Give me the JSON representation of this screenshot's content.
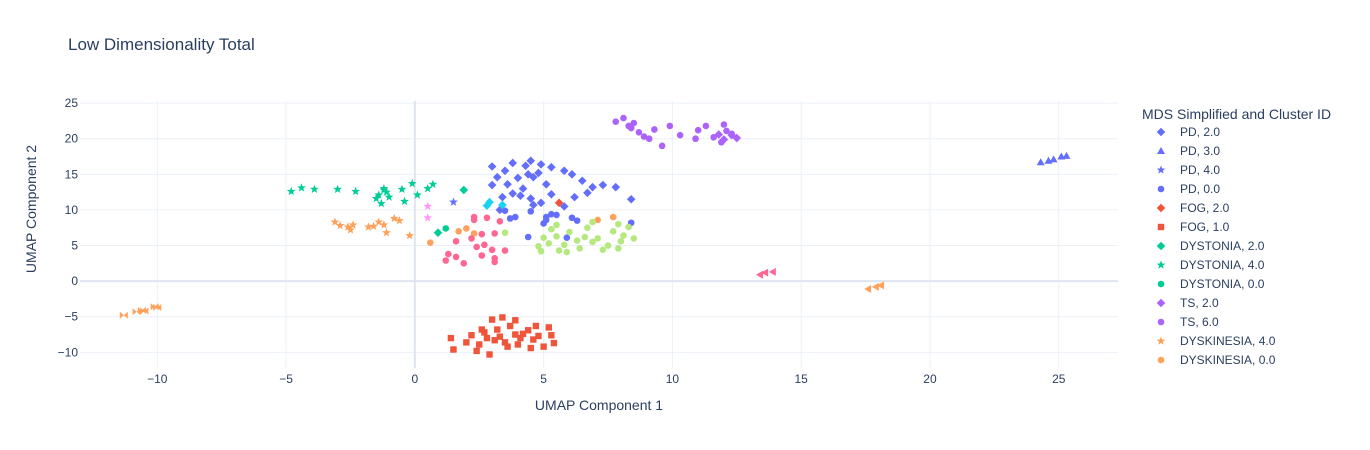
{
  "chart_data": {
    "type": "scatter",
    "title": "Low Dimensionality Total",
    "xlabel": "UMAP Component 1",
    "ylabel": "UMAP Component 2",
    "xlim": [
      -13.0,
      27.3
    ],
    "ylim": [
      -12.2,
      25.3
    ],
    "xticks": [
      -10,
      -5,
      0,
      5,
      10,
      15,
      20,
      25
    ],
    "yticks": [
      -10,
      -5,
      0,
      5,
      10,
      15,
      20,
      25
    ],
    "grid": true,
    "legend_title": "MDS Simplified and Cluster ID",
    "legend_position": "right",
    "series": [
      {
        "name": "PD, 2.0",
        "color": "#636efa",
        "symbol": "diamond",
        "points": [
          [
            3.0,
            16.1
          ],
          [
            3.5,
            15.5
          ],
          [
            3.8,
            16.6
          ],
          [
            4.3,
            16.2
          ],
          [
            4.5,
            16.9
          ],
          [
            4.9,
            16.4
          ],
          [
            5.3,
            16.0
          ],
          [
            5.8,
            15.5
          ],
          [
            6.1,
            15.0
          ],
          [
            6.5,
            14.1
          ],
          [
            6.9,
            13.2
          ],
          [
            7.3,
            13.5
          ],
          [
            7.8,
            13.2
          ],
          [
            8.4,
            11.5
          ],
          [
            3.2,
            14.6
          ],
          [
            3.6,
            13.6
          ],
          [
            4.0,
            14.5
          ],
          [
            4.4,
            15.0
          ],
          [
            4.6,
            14.6
          ],
          [
            4.8,
            15.2
          ],
          [
            4.2,
            13.0
          ],
          [
            3.8,
            12.3
          ],
          [
            3.4,
            11.8
          ],
          [
            3.3,
            10.0
          ],
          [
            4.5,
            11.6
          ],
          [
            4.9,
            11.0
          ],
          [
            5.3,
            12.2
          ],
          [
            5.8,
            10.5
          ],
          [
            6.2,
            11.8
          ],
          [
            6.7,
            12.4
          ],
          [
            4.6,
            10.7
          ],
          [
            4.1,
            12.0
          ],
          [
            3.0,
            13.5
          ],
          [
            5.1,
            13.6
          ]
        ]
      },
      {
        "name": "PD, 3.0",
        "color": "#636efa",
        "symbol": "triangle-up",
        "points": [
          [
            24.3,
            16.7
          ],
          [
            24.6,
            16.9
          ],
          [
            24.8,
            17.1
          ],
          [
            25.1,
            17.5
          ],
          [
            25.3,
            17.6
          ]
        ]
      },
      {
        "name": "PD, 4.0",
        "color": "#636efa",
        "symbol": "star",
        "points": [
          [
            1.5,
            11.1
          ]
        ]
      },
      {
        "name": "PD, 0.0",
        "color": "#636efa",
        "symbol": "circle",
        "points": [
          [
            3.5,
            9.9
          ],
          [
            3.9,
            9.0
          ],
          [
            4.5,
            9.8
          ],
          [
            5.1,
            9.0
          ],
          [
            5.3,
            9.4
          ],
          [
            5.5,
            9.3
          ],
          [
            6.1,
            8.9
          ],
          [
            6.3,
            8.5
          ],
          [
            8.4,
            8.2
          ],
          [
            4.4,
            6.2
          ],
          [
            5.9,
            6.1
          ],
          [
            5.0,
            8.1
          ],
          [
            5.1,
            8.6
          ],
          [
            3.7,
            8.8
          ]
        ]
      },
      {
        "name": "FOG, 2.0",
        "color": "#EF553B",
        "symbol": "diamond",
        "points": [
          [
            5.6,
            11.0
          ]
        ]
      },
      {
        "name": "FOG, 1.0",
        "color": "#EF553B",
        "symbol": "square",
        "points": [
          [
            1.4,
            -8.0
          ],
          [
            1.5,
            -9.6
          ],
          [
            2.0,
            -8.6
          ],
          [
            2.2,
            -7.6
          ],
          [
            2.5,
            -8.9
          ],
          [
            2.6,
            -6.8
          ],
          [
            2.8,
            -8.0
          ],
          [
            3.0,
            -5.4
          ],
          [
            3.2,
            -6.8
          ],
          [
            3.3,
            -7.8
          ],
          [
            3.5,
            -8.6
          ],
          [
            3.7,
            -6.3
          ],
          [
            3.9,
            -7.5
          ],
          [
            4.0,
            -8.9
          ],
          [
            4.2,
            -7.4
          ],
          [
            4.4,
            -6.9
          ],
          [
            4.6,
            -8.2
          ],
          [
            4.8,
            -7.7
          ],
          [
            5.0,
            -9.2
          ],
          [
            5.2,
            -6.5
          ],
          [
            5.4,
            -8.7
          ],
          [
            2.4,
            -9.8
          ],
          [
            2.9,
            -10.3
          ],
          [
            3.4,
            -5.1
          ],
          [
            3.9,
            -5.5
          ],
          [
            4.5,
            -9.4
          ],
          [
            5.3,
            -7.6
          ],
          [
            2.7,
            -7.2
          ],
          [
            3.1,
            -8.3
          ],
          [
            3.6,
            -9.2
          ],
          [
            4.1,
            -8.0
          ],
          [
            4.7,
            -6.3
          ]
        ]
      },
      {
        "name": "DYSTONIA, 2.0",
        "color": "#00cc96",
        "symbol": "diamond",
        "points": [
          [
            1.9,
            12.8
          ],
          [
            0.9,
            6.8
          ]
        ]
      },
      {
        "name": "DYSTONIA, 4.0",
        "color": "#00cc96",
        "symbol": "star",
        "points": [
          [
            -4.8,
            12.6
          ],
          [
            -4.4,
            13.1
          ],
          [
            -3.9,
            12.9
          ],
          [
            -3.0,
            12.9
          ],
          [
            -2.3,
            12.6
          ],
          [
            -1.4,
            12.1
          ],
          [
            -1.2,
            13.0
          ],
          [
            -1.1,
            12.5
          ],
          [
            -1.0,
            11.8
          ],
          [
            -0.5,
            12.9
          ],
          [
            -0.1,
            13.7
          ],
          [
            0.5,
            13.0
          ],
          [
            0.7,
            13.6
          ],
          [
            -0.4,
            11.2
          ],
          [
            -1.3,
            10.9
          ],
          [
            -1.5,
            11.6
          ],
          [
            0.1,
            12.1
          ],
          [
            -1.2,
            12.8
          ]
        ]
      },
      {
        "name": "DYSTONIA, 0.0",
        "color": "#00cc96",
        "symbol": "circle",
        "points": [
          [
            1.2,
            7.4
          ]
        ]
      },
      {
        "name": "TS, 2.0",
        "color": "#ab63fa",
        "symbol": "diamond",
        "points": [
          [
            12.3,
            20.5
          ],
          [
            12.0,
            19.9
          ],
          [
            12.5,
            20.1
          ],
          [
            11.8,
            20.6
          ]
        ]
      },
      {
        "name": "TS, 6.0",
        "color": "#ab63fa",
        "symbol": "circle",
        "points": [
          [
            7.8,
            22.4
          ],
          [
            8.1,
            22.9
          ],
          [
            8.3,
            21.8
          ],
          [
            8.5,
            22.2
          ],
          [
            8.7,
            20.9
          ],
          [
            8.9,
            20.3
          ],
          [
            9.3,
            21.3
          ],
          [
            9.6,
            19.0
          ],
          [
            9.9,
            21.8
          ],
          [
            10.3,
            20.5
          ],
          [
            11.0,
            21.2
          ],
          [
            11.3,
            21.8
          ],
          [
            11.6,
            20.2
          ],
          [
            12.0,
            22.0
          ],
          [
            12.1,
            21.1
          ],
          [
            12.3,
            20.7
          ],
          [
            11.9,
            19.5
          ],
          [
            9.1,
            20.0
          ],
          [
            10.9,
            20.0
          ],
          [
            8.4,
            21.5
          ]
        ]
      },
      {
        "name": "DYSKINESIA, 4.0",
        "color": "#FFA15A",
        "symbol": "star",
        "points": [
          [
            -3.1,
            8.3
          ],
          [
            -2.9,
            7.8
          ],
          [
            -2.6,
            7.6
          ],
          [
            -2.4,
            7.9
          ],
          [
            -1.8,
            7.6
          ],
          [
            -1.4,
            8.3
          ],
          [
            -1.2,
            7.9
          ],
          [
            -1.1,
            6.8
          ],
          [
            -0.8,
            8.8
          ],
          [
            -0.6,
            8.5
          ],
          [
            -0.2,
            6.4
          ],
          [
            -2.5,
            7.2
          ],
          [
            -1.6,
            7.7
          ]
        ]
      },
      {
        "name": "DYSKINESIA, 0.0",
        "color": "#FFA15A",
        "symbol": "circle",
        "points": [
          [
            0.6,
            5.4
          ],
          [
            2.0,
            7.4
          ],
          [
            1.7,
            7.0
          ],
          [
            7.1,
            8.6
          ],
          [
            7.7,
            9.0
          ],
          [
            2.3,
            6.7
          ]
        ]
      },
      {
        "name": "",
        "color": "#19d3f3",
        "symbol": "diamond",
        "points": [
          [
            2.9,
            11.1
          ],
          [
            3.4,
            10.7
          ],
          [
            2.8,
            10.6
          ]
        ]
      },
      {
        "name": "",
        "color": "#FF6692",
        "symbol": "circle",
        "points": [
          [
            1.6,
            5.6
          ],
          [
            1.3,
            3.8
          ],
          [
            1.6,
            3.4
          ],
          [
            1.9,
            2.5
          ],
          [
            2.2,
            6.0
          ],
          [
            2.3,
            8.6
          ],
          [
            2.3,
            9.0
          ],
          [
            2.6,
            6.6
          ],
          [
            2.7,
            5.1
          ],
          [
            2.8,
            8.9
          ],
          [
            3.0,
            4.4
          ],
          [
            3.1,
            6.7
          ],
          [
            3.1,
            3.2
          ],
          [
            3.1,
            2.7
          ],
          [
            3.3,
            8.4
          ],
          [
            3.5,
            4.3
          ],
          [
            2.6,
            3.6
          ],
          [
            2.4,
            4.8
          ],
          [
            1.2,
            2.9
          ]
        ]
      },
      {
        "name": "",
        "color": "#FF6692",
        "symbol": "triangle-left",
        "points": [
          [
            13.4,
            0.9
          ],
          [
            13.6,
            1.2
          ],
          [
            13.9,
            1.3
          ]
        ]
      },
      {
        "name": "",
        "color": "#B6E880",
        "symbol": "circle",
        "points": [
          [
            4.8,
            4.9
          ],
          [
            5.0,
            6.1
          ],
          [
            5.2,
            5.3
          ],
          [
            5.3,
            7.3
          ],
          [
            5.5,
            6.3
          ],
          [
            5.8,
            5.1
          ],
          [
            5.9,
            4.1
          ],
          [
            6.0,
            6.9
          ],
          [
            6.4,
            4.6
          ],
          [
            6.6,
            6.2
          ],
          [
            6.7,
            7.5
          ],
          [
            6.9,
            5.5
          ],
          [
            7.1,
            6.0
          ],
          [
            7.3,
            4.4
          ],
          [
            7.5,
            5.0
          ],
          [
            7.7,
            7.0
          ],
          [
            7.9,
            8.0
          ],
          [
            8.1,
            6.4
          ],
          [
            8.3,
            7.6
          ],
          [
            8.5,
            6.0
          ],
          [
            8.0,
            5.6
          ],
          [
            7.9,
            4.6
          ],
          [
            5.6,
            4.3
          ],
          [
            4.9,
            4.2
          ],
          [
            6.3,
            5.7
          ],
          [
            5.5,
            7.9
          ],
          [
            3.5,
            6.8
          ],
          [
            6.9,
            8.3
          ]
        ]
      },
      {
        "name": "",
        "color": "#FF97FF",
        "symbol": "star",
        "points": [
          [
            0.5,
            10.5
          ],
          [
            0.5,
            8.9
          ]
        ]
      },
      {
        "name": "",
        "color": "#FFA15A",
        "symbol": "bowtie",
        "points": [
          [
            -11.3,
            -4.8
          ],
          [
            -10.8,
            -4.3
          ],
          [
            -10.6,
            -4.1
          ],
          [
            -10.5,
            -4.2
          ],
          [
            -10.1,
            -3.6
          ],
          [
            -10.0,
            -3.7
          ]
        ]
      },
      {
        "name": "",
        "color": "#FFA15A",
        "symbol": "triangle-left",
        "points": [
          [
            17.6,
            -1.1
          ],
          [
            17.9,
            -0.8
          ],
          [
            18.1,
            -0.6
          ]
        ]
      }
    ]
  }
}
